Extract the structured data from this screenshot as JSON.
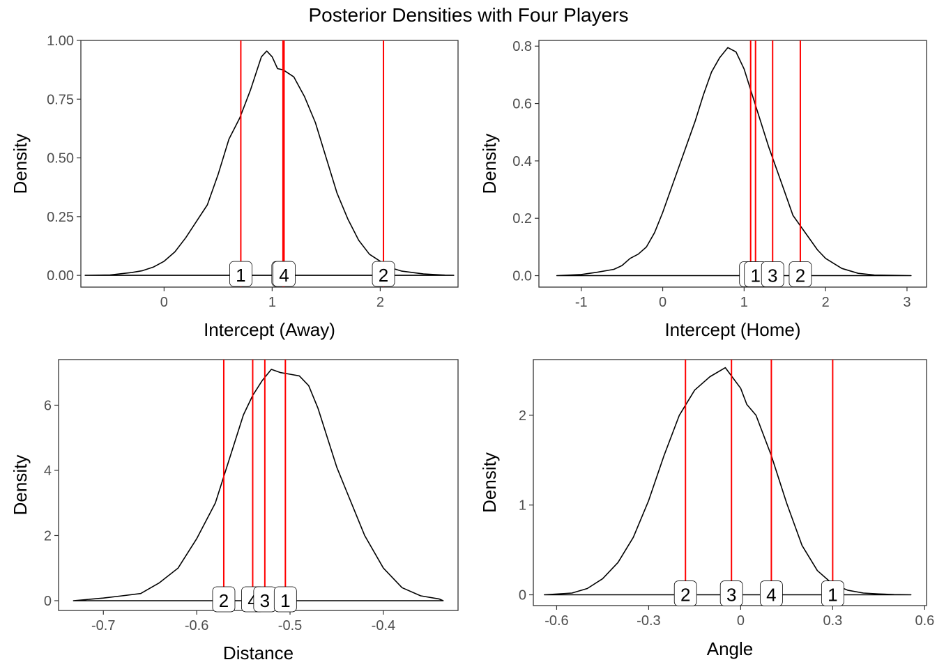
{
  "title": "Posterior Densities with Four Players",
  "colors": {
    "line": "#000000",
    "marker": "#FF0000",
    "axis_text": "#4D4D4D"
  },
  "chart_data": [
    {
      "type": "line",
      "xlabel": "Intercept (Away)",
      "ylabel": "Density",
      "xlim": [
        -0.77,
        2.72
      ],
      "ylim": [
        -0.05,
        1.0
      ],
      "xticks": [
        0,
        1,
        2
      ],
      "yticks": [
        0.0,
        0.25,
        0.5,
        0.75,
        1.0
      ],
      "ytick_labels": [
        "0.00",
        "0.25",
        "0.50",
        "0.75",
        "1.00"
      ],
      "density": {
        "x": [
          -0.73,
          -0.5,
          -0.3,
          -0.2,
          -0.1,
          0.0,
          0.1,
          0.2,
          0.3,
          0.4,
          0.5,
          0.6,
          0.7,
          0.8,
          0.9,
          0.95,
          1.0,
          1.05,
          1.1,
          1.2,
          1.3,
          1.4,
          1.5,
          1.6,
          1.7,
          1.8,
          1.9,
          2.0,
          2.1,
          2.2,
          2.4,
          2.6,
          2.68
        ],
        "y": [
          0.0,
          0.002,
          0.012,
          0.02,
          0.035,
          0.06,
          0.1,
          0.16,
          0.23,
          0.3,
          0.43,
          0.58,
          0.67,
          0.79,
          0.93,
          0.955,
          0.93,
          0.88,
          0.875,
          0.845,
          0.76,
          0.65,
          0.5,
          0.35,
          0.24,
          0.15,
          0.09,
          0.06,
          0.032,
          0.018,
          0.006,
          0.001,
          0.0
        ]
      },
      "markers": [
        {
          "label": "1",
          "x": 0.71
        },
        {
          "label": "3",
          "x": 1.1
        },
        {
          "label": "4",
          "x": 1.11
        },
        {
          "label": "2",
          "x": 2.03
        }
      ]
    },
    {
      "type": "line",
      "xlabel": "Intercept (Home)",
      "ylabel": "Density",
      "xlim": [
        -1.52,
        3.24
      ],
      "ylim": [
        -0.04,
        0.82
      ],
      "xticks": [
        -1,
        0,
        1,
        2,
        3
      ],
      "yticks": [
        0.0,
        0.2,
        0.4,
        0.6,
        0.8
      ],
      "ytick_labels": [
        "0.0",
        "0.2",
        "0.4",
        "0.6",
        "0.8"
      ],
      "density": {
        "x": [
          -1.3,
          -1.0,
          -0.8,
          -0.6,
          -0.5,
          -0.4,
          -0.3,
          -0.2,
          -0.1,
          0.0,
          0.1,
          0.2,
          0.3,
          0.4,
          0.5,
          0.6,
          0.7,
          0.8,
          0.9,
          1.0,
          1.1,
          1.2,
          1.3,
          1.4,
          1.5,
          1.6,
          1.7,
          1.8,
          1.9,
          2.0,
          2.2,
          2.4,
          2.6,
          2.8,
          3.05
        ],
        "y": [
          0.0,
          0.004,
          0.012,
          0.022,
          0.035,
          0.06,
          0.075,
          0.1,
          0.15,
          0.22,
          0.3,
          0.38,
          0.46,
          0.54,
          0.63,
          0.71,
          0.76,
          0.795,
          0.78,
          0.72,
          0.63,
          0.54,
          0.45,
          0.37,
          0.29,
          0.21,
          0.17,
          0.13,
          0.09,
          0.06,
          0.025,
          0.008,
          0.002,
          0.001,
          0.0
        ]
      },
      "markers": [
        {
          "label": "4",
          "x": 1.08
        },
        {
          "label": "1",
          "x": 1.14
        },
        {
          "label": "3",
          "x": 1.35
        },
        {
          "label": "2",
          "x": 1.69
        }
      ]
    },
    {
      "type": "line",
      "xlabel": "Distance",
      "ylabel": "Density",
      "xlim": [
        -0.748,
        -0.32
      ],
      "ylim": [
        -0.3,
        7.4
      ],
      "xticks": [
        -0.7,
        -0.6,
        -0.5,
        -0.4
      ],
      "yticks": [
        0,
        2,
        4,
        6
      ],
      "ytick_labels": [
        "0",
        "2",
        "4",
        "6"
      ],
      "density": {
        "x": [
          -0.732,
          -0.7,
          -0.68,
          -0.66,
          -0.64,
          -0.62,
          -0.6,
          -0.58,
          -0.56,
          -0.55,
          -0.54,
          -0.53,
          -0.52,
          -0.51,
          -0.5,
          -0.49,
          -0.48,
          -0.47,
          -0.46,
          -0.45,
          -0.44,
          -0.42,
          -0.4,
          -0.38,
          -0.36,
          -0.34,
          -0.336
        ],
        "y": [
          0.0,
          0.08,
          0.15,
          0.22,
          0.55,
          1.0,
          1.9,
          3.0,
          4.8,
          5.7,
          6.3,
          6.75,
          7.1,
          7.0,
          6.95,
          6.9,
          6.6,
          5.9,
          5.0,
          4.1,
          3.4,
          2.0,
          1.0,
          0.4,
          0.15,
          0.05,
          0.0
        ]
      },
      "markers": [
        {
          "label": "2",
          "x": -0.571
        },
        {
          "label": "4",
          "x": -0.54
        },
        {
          "label": "3",
          "x": -0.527
        },
        {
          "label": "1",
          "x": -0.505
        }
      ]
    },
    {
      "type": "line",
      "xlabel": "Angle",
      "ylabel": "Density",
      "xlim": [
        -0.676,
        0.606
      ],
      "ylim": [
        -0.12,
        2.62
      ],
      "xticks": [
        -0.6,
        -0.3,
        0.0,
        0.3,
        0.6
      ],
      "yticks": [
        0,
        1,
        2
      ],
      "ytick_labels": [
        "0",
        "1",
        "2"
      ],
      "density": {
        "x": [
          -0.64,
          -0.55,
          -0.5,
          -0.45,
          -0.4,
          -0.35,
          -0.3,
          -0.25,
          -0.2,
          -0.15,
          -0.1,
          -0.05,
          0.0,
          0.02,
          0.05,
          0.1,
          0.15,
          0.2,
          0.25,
          0.3,
          0.35,
          0.4,
          0.45,
          0.5,
          0.555
        ],
        "y": [
          0.0,
          0.02,
          0.07,
          0.18,
          0.36,
          0.64,
          1.05,
          1.55,
          2.0,
          2.28,
          2.43,
          2.53,
          2.3,
          2.12,
          2.0,
          1.55,
          1.02,
          0.55,
          0.27,
          0.12,
          0.05,
          0.02,
          0.01,
          0.003,
          0.0
        ]
      },
      "markers": [
        {
          "label": "2",
          "x": -0.18
        },
        {
          "label": "3",
          "x": -0.03
        },
        {
          "label": "4",
          "x": 0.1
        },
        {
          "label": "1",
          "x": 0.3
        }
      ]
    }
  ]
}
